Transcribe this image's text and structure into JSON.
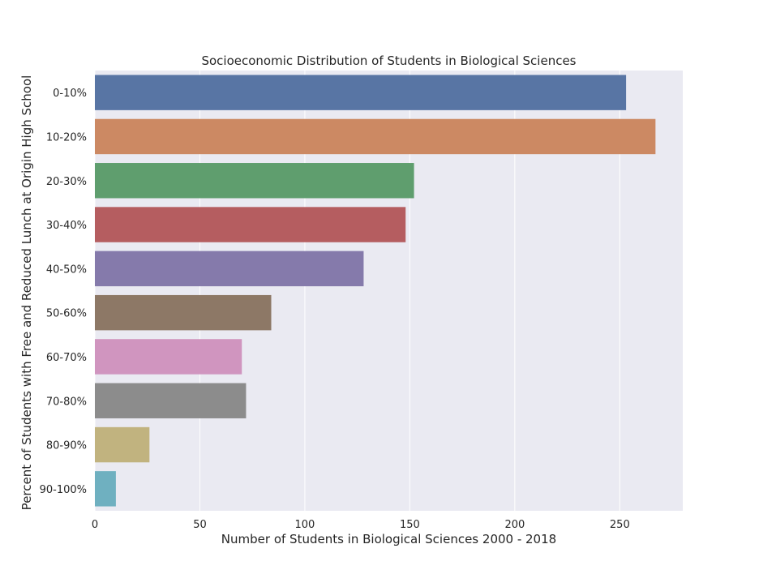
{
  "chart_data": {
    "type": "bar",
    "orientation": "horizontal",
    "title": "Socioeconomic Distribution of Students in Biological Sciences",
    "xlabel": "Number of Students in Biological Sciences 2000 - 2018",
    "ylabel": "Percent of Students with Free and Reduced Lunch at Origin High School",
    "xlim": [
      0,
      280
    ],
    "xticks": [
      0,
      50,
      100,
      150,
      200,
      250
    ],
    "grid": true,
    "categories": [
      "0-10%",
      "10-20%",
      "20-30%",
      "30-40%",
      "40-50%",
      "50-60%",
      "60-70%",
      "70-80%",
      "80-90%",
      "90-100%"
    ],
    "values": [
      253,
      267,
      152,
      148,
      128,
      84,
      70,
      72,
      26,
      10
    ],
    "colors": [
      "#5875a4",
      "#cc8963",
      "#5f9e6e",
      "#b55d60",
      "#857aab",
      "#8d7866",
      "#d095bf",
      "#8c8c8c",
      "#c1b37f",
      "#6fb0c0"
    ],
    "background": "#eaeaf2"
  }
}
